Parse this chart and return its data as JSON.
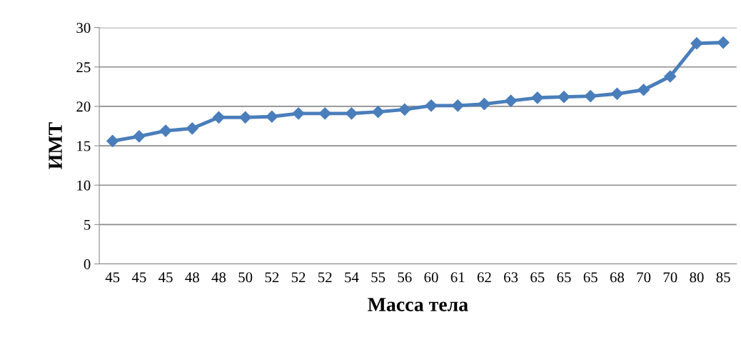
{
  "chart_data": {
    "type": "line",
    "xlabel": "Масса тела",
    "ylabel": "ИМТ",
    "categories": [
      "45",
      "45",
      "45",
      "48",
      "48",
      "50",
      "52",
      "52",
      "52",
      "54",
      "55",
      "56",
      "60",
      "61",
      "62",
      "63",
      "65",
      "65",
      "65",
      "68",
      "70",
      "70",
      "80",
      "85"
    ],
    "series": [
      {
        "color": "#4a7ebb",
        "values": [
          15.6,
          16.2,
          16.9,
          17.2,
          18.6,
          18.6,
          18.7,
          19.1,
          19.1,
          19.1,
          19.3,
          19.6,
          20.1,
          20.1,
          20.3,
          20.7,
          21.1,
          21.2,
          21.3,
          21.6,
          22.1,
          23.8,
          28.0,
          28.1
        ]
      }
    ],
    "ylim": [
      0,
      30
    ],
    "yticks": [
      0,
      5,
      10,
      15,
      20,
      25,
      30
    ],
    "grid": "y",
    "marker": "diamond",
    "line_style": "solid",
    "legend": false
  }
}
